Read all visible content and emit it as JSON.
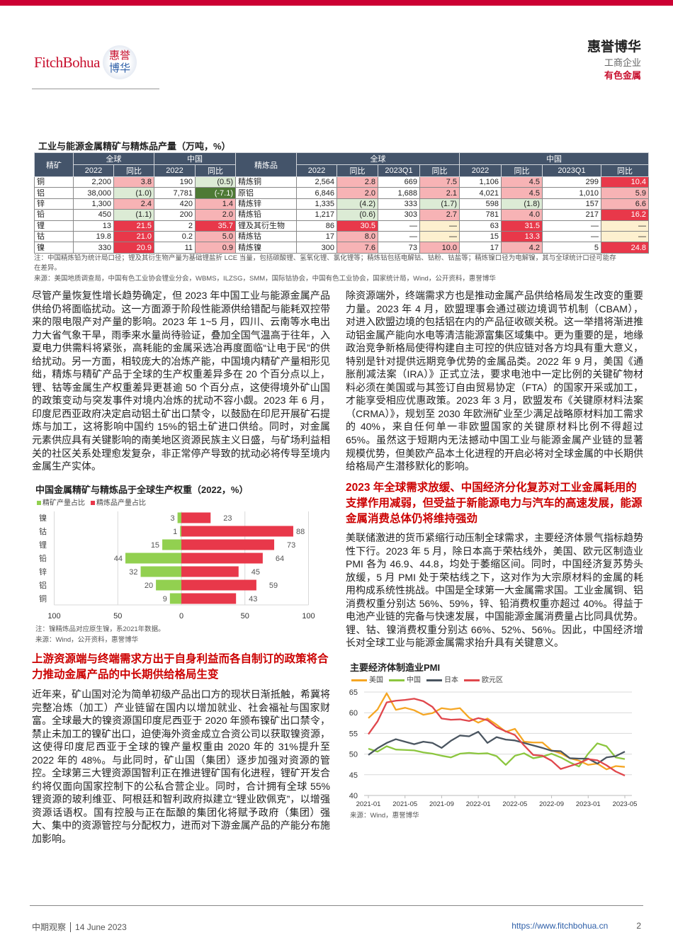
{
  "header": {
    "logo_text": "FitchBohua",
    "seal_chars": [
      "惠",
      "誉",
      "博",
      "华"
    ],
    "brand": "惠誉博华",
    "sector": "工商企业",
    "subsector": "有色金属",
    "accent": "#cc0033"
  },
  "table": {
    "title": "工业与能源金属精矿与精炼品产量（万吨，%）",
    "groups": {
      "ore": "精矿",
      "global": "全球",
      "china": "中国",
      "refined": "精炼品"
    },
    "subheaders": {
      "y2022": "2022",
      "yoy": "同比",
      "q1": "2023Q1"
    },
    "rows": [
      {
        "ore": "铜",
        "cells": [
          [
            "2,200",
            ""
          ],
          [
            "3.8",
            "lr"
          ],
          [
            "190",
            ""
          ],
          [
            "(0.5)",
            "lg"
          ],
          [
            "精炼铜",
            ""
          ],
          [
            "2,564",
            ""
          ],
          [
            "2.8",
            "lr"
          ],
          [
            "669",
            ""
          ],
          [
            "7.5",
            "lr"
          ],
          [
            "1,106",
            ""
          ],
          [
            "4.5",
            "lr"
          ],
          [
            "299",
            ""
          ],
          [
            "10.4",
            "sr"
          ]
        ]
      },
      {
        "ore": "铝",
        "cells": [
          [
            "38,000",
            ""
          ],
          [
            "(1.0)",
            "lg"
          ],
          [
            "7,781",
            ""
          ],
          [
            "(-7.1)",
            "dg"
          ],
          [
            "原铝",
            ""
          ],
          [
            "6,846",
            ""
          ],
          [
            "2.0",
            "lr"
          ],
          [
            "1,688",
            ""
          ],
          [
            "2.1",
            "lr"
          ],
          [
            "4,021",
            ""
          ],
          [
            "4.5",
            "lr"
          ],
          [
            "1,010",
            ""
          ],
          [
            "5.9",
            "lr"
          ]
        ]
      },
      {
        "ore": "锌",
        "cells": [
          [
            "1,300",
            ""
          ],
          [
            "2.4",
            "lr"
          ],
          [
            "420",
            ""
          ],
          [
            "1.4",
            "lr"
          ],
          [
            "精炼锌",
            ""
          ],
          [
            "1,335",
            ""
          ],
          [
            "(4.2)",
            "lg"
          ],
          [
            "333",
            ""
          ],
          [
            "(1.7)",
            "lg"
          ],
          [
            "598",
            ""
          ],
          [
            "(1.8)",
            "lg"
          ],
          [
            "157",
            ""
          ],
          [
            "6.6",
            "lr"
          ]
        ]
      },
      {
        "ore": "铅",
        "cells": [
          [
            "450",
            ""
          ],
          [
            "(1.1)",
            "lg"
          ],
          [
            "200",
            ""
          ],
          [
            "2.0",
            "lr"
          ],
          [
            "精炼铅",
            ""
          ],
          [
            "1,217",
            ""
          ],
          [
            "(0.6)",
            "lg"
          ],
          [
            "303",
            ""
          ],
          [
            "2.7",
            "lr"
          ],
          [
            "781",
            ""
          ],
          [
            "4.0",
            "lr"
          ],
          [
            "217",
            ""
          ],
          [
            "16.2",
            "sr"
          ]
        ]
      },
      {
        "ore": "锂",
        "cells": [
          [
            "13",
            ""
          ],
          [
            "21.5",
            "sr"
          ],
          [
            "2",
            ""
          ],
          [
            "35.7",
            "sr"
          ],
          [
            "锂及其衍生物",
            ""
          ],
          [
            "86",
            ""
          ],
          [
            "30.5",
            "sr"
          ],
          [
            "—",
            ""
          ],
          [
            "—",
            "y"
          ],
          [
            "63",
            ""
          ],
          [
            "31.5",
            "sr"
          ],
          [
            "—",
            ""
          ],
          [
            "—",
            "y"
          ]
        ]
      },
      {
        "ore": "钴",
        "cells": [
          [
            "19.8",
            ""
          ],
          [
            "21.0",
            "sr"
          ],
          [
            "0.2",
            ""
          ],
          [
            "5.0",
            "lr"
          ],
          [
            "精炼钴",
            ""
          ],
          [
            "17",
            ""
          ],
          [
            "8.0",
            "lr"
          ],
          [
            "—",
            ""
          ],
          [
            "—",
            "y"
          ],
          [
            "15",
            ""
          ],
          [
            "13.3",
            "sr"
          ],
          [
            "—",
            ""
          ],
          [
            "—",
            "y"
          ]
        ]
      },
      {
        "ore": "镍",
        "cells": [
          [
            "330",
            ""
          ],
          [
            "20.9",
            "sr"
          ],
          [
            "11",
            ""
          ],
          [
            "0.9",
            "lr"
          ],
          [
            "精炼镍",
            ""
          ],
          [
            "300",
            ""
          ],
          [
            "7.6",
            "lr"
          ],
          [
            "73",
            ""
          ],
          [
            "10.0",
            "lr"
          ],
          [
            "17",
            ""
          ],
          [
            "4.2",
            "lr"
          ],
          [
            "5",
            ""
          ],
          [
            "24.8",
            "sr"
          ]
        ]
      }
    ],
    "tone_colors": {
      "lr": "#f7b3b5",
      "sr": "#e8384a",
      "lg": "#dcebd5",
      "dg": "#4e7a35",
      "y": "#fdf0cf"
    },
    "note": "注：中国精炼铅为统计局口径；锂及其衍生物产量为基础锂盐折 LCE 当量，包括碳酸锂、氢氧化锂、氯化锂等；精炼钴包括电解钴、钴粉、钴盐等；精炼镍口径为电解镍，其与全球统计口径可能存在差异。",
    "source": "来源：美国地质调查局，中国有色工业协会锂业分会，WBMS，ILZSG，SMM，国际钴协会，中国有色工业协会，国家统计局，Wind，公开资料，惠誉博华"
  },
  "left": {
    "p1": "尽管产量恢复性增长趋势确定，但 2023 年中国工业与能源金属产品供给仍将面临扰动。这一方面源于阶段性能源供给错配与能耗双控带来的限电限产对产量的影响。2023 年 1~5 月，四川、云南等水电出力大省气象干旱，雨季来水量尚待验证，叠加全国气温高于往年，入夏电力供需料将紧张，高耗能的金属采选冶再度面临“让电于民”的供给扰动。另一方面，相较庞大的冶炼产能，中国境内精矿产量相形见绌，精炼与精矿产品于全球的生产权重差异多在 20 个百分点以上，锂、钴等金属生产权重差异更甚逾 50 个百分点，这使得境外矿山国的政策变动与突发事件对境内冶炼的扰动不容小觑。2023 年 6 月，印度尼西亚政府决定启动铝土矿出口禁令，以鼓励在印尼开展矿石提炼与加工，这将影响中国约 15%的铝土矿进口供给。同时，对金属元素供应具有关键影响的南美地区资源民族主义日盛，与矿场利益相关的社区关系处理愈发复杂，非正常停产导致的扰动必将传导至境内金属生产实体。",
    "h2": "上游资源端与终端需求方出于自身利益而各自制订的政策将合力推动金属产品的中长期供给格局生变",
    "p2": "近年来，矿山国对沦为简单初级产品出口方的现状日渐抵触，希冀将完整冶炼（加工）产业链留在国内以增加就业、社会福祉与国家财富。全球最大的镍资源国印度尼西亚于 2020 年颁布镍矿出口禁令，禁止未加工的镍矿出口，迫使海外资金成立合资公司以获取镍资源，这使得印度尼西亚于全球的镍产量权重由 2020 年的 31%提升至 2022 年的 48%。与此同时，矿山国（集团）逐步加强对资源的管控。全球第三大锂资源国智利正在推进锂矿国有化进程，锂矿开发合约将仅面向国家控制下的公私合营企业。同时，合计拥有全球 55%锂资源的玻利维亚、阿根廷和智利政府拟建立“锂业欧佩克”，以增强资源话语权。国有控股与正在酝酿的集团化将赋予政府（集团）强大、集中的资源管控与分配权力，进而对下游金属产品的产能分布施加影响。"
  },
  "right": {
    "p1": "除资源端外，终端需求方也是推动金属产品供给格局发生改变的重要力量。2023 年 4 月，欧盟理事会通过碳边境调节机制（CBAM），对进入欧盟边境的包括铝在内的产品征收碳关税。这一举措将渐进推动铝金属产能向水电等清洁能源富集区域集中。更为重要的是，地缘政治竞争新格局使得构建自主可控的供应链对各方均具有重大意义，特别是针对提供远期竞争优势的金属品类。2022 年 9 月，美国《通胀削减法案（IRA）》正式立法，要求电池中一定比例的关键矿物材料必须在美国或与其签订自由贸易协定（FTA）的国家开采或加工，才能享受相应优惠政策。2023 年 3 月，欧盟发布《关键原材料法案（CRMA）》，规划至 2030 年欧洲矿业至少满足战略原材料加工需求的 40%，来自任何单一非欧盟国家的关键原材料比例不得超过 65%。虽然这于短期内无法撼动中国工业与能源金属产业链的显著规模优势，但美欧产品本土化进程的开启必将对全球金属的中长期供给格局产生潜移默化的影响。",
    "h2": "2023 年全球需求放缓、中国经济分化复苏对工业金属耗用的支撑作用减弱，但受益于新能源电力与汽车的高速发展，能源金属消费总体仍将维持强劲",
    "p2": "美联储激进的货币紧缩行动压制全球需求，主要经济体景气指标趋势性下行。2023 年 5 月，除日本高于荣枯线外，美国、欧元区制造业 PMI 各为 46.9、44.8，均处于萎缩区间。同时，中国经济复苏势头放缓，5 月 PMI 处于荣枯线之下，这对作为大宗原材料的金属的耗用构成系统性挑战。中国是全球第一大金属需求国。工业金属铜、铝消费权重分别达 56%、59%，锌、铅消费权重亦超过 40%。得益于电池产业链的完备与快速发展，中国能源金属消费量占比同具优势。锂、钴、镍消费权重分别达 66%、52%、56%。因此，中国经济增长对全球工业与能源金属需求抬升具有关键意义。"
  },
  "chart_data": [
    {
      "type": "bar",
      "title": "中国金属精矿与精炼品于全球生产权重（2022，%）",
      "categories": [
        "镍",
        "钴",
        "锂",
        "铅",
        "锌",
        "铝",
        "铜"
      ],
      "series": [
        {
          "name": "精矿产量占比",
          "color": "#92d050",
          "values": [
            3,
            1,
            15,
            44,
            32,
            20,
            9
          ]
        },
        {
          "name": "精炼品产量占比",
          "color": "#e8384a",
          "values": [
            23,
            88,
            73,
            64,
            45,
            59,
            43
          ]
        }
      ],
      "xlim": [
        -100,
        100
      ],
      "xticks": [
        "100",
        "50",
        "0",
        "50",
        "100"
      ],
      "grid": true,
      "legend": "top-left",
      "note": "注：镍精炼品对应原生镍，系2021年数据。",
      "source": "来源：Wind，公开资料，惠誉博华"
    },
    {
      "type": "line",
      "title": "主要经济体制造业PMI",
      "x": [
        "2021-01",
        "2021-02",
        "2021-03",
        "2021-04",
        "2021-05",
        "2021-06",
        "2021-07",
        "2021-08",
        "2021-09",
        "2021-10",
        "2021-11",
        "2021-12",
        "2022-01",
        "2022-02",
        "2022-03",
        "2022-04",
        "2022-05",
        "2022-06",
        "2022-07",
        "2022-08",
        "2022-09",
        "2022-10",
        "2022-11",
        "2022-12",
        "2023-01",
        "2023-02",
        "2023-03",
        "2023-04",
        "2023-05"
      ],
      "xticks": [
        "2021-01",
        "2021-05",
        "2021-09",
        "2022-01",
        "2022-05",
        "2022-09",
        "2023-01",
        "2023-05"
      ],
      "ylim": [
        40,
        65
      ],
      "yticks": [
        "40",
        "45",
        "50",
        "55",
        "60",
        "65"
      ],
      "grid": true,
      "legend": "top",
      "series": [
        {
          "name": "美国",
          "color": "#f5a623",
          "values": [
            58.7,
            60.8,
            64.7,
            60.7,
            61.2,
            60.6,
            59.5,
            59.9,
            61.1,
            60.8,
            61.1,
            58.8,
            57.6,
            58.6,
            57.1,
            55.4,
            56.1,
            53.0,
            52.8,
            52.8,
            50.9,
            50.2,
            49.0,
            48.4,
            47.4,
            47.7,
            46.3,
            47.1,
            46.9
          ]
        },
        {
          "name": "中国",
          "color": "#8cc63f",
          "values": [
            51.3,
            50.6,
            51.9,
            51.1,
            51.0,
            50.9,
            50.4,
            50.1,
            49.6,
            49.2,
            50.1,
            50.3,
            50.1,
            50.2,
            49.5,
            47.4,
            49.6,
            50.2,
            49.0,
            49.4,
            50.1,
            49.2,
            48.0,
            47.0,
            50.1,
            52.6,
            51.9,
            49.2,
            48.8
          ]
        },
        {
          "name": "日本",
          "color": "#4a5560",
          "values": [
            49.8,
            51.4,
            52.7,
            53.6,
            53.0,
            52.4,
            53.0,
            52.7,
            51.5,
            53.2,
            54.5,
            54.3,
            55.4,
            52.7,
            54.1,
            53.5,
            53.3,
            52.7,
            52.1,
            51.5,
            50.8,
            50.7,
            49.0,
            48.9,
            48.9,
            47.7,
            49.2,
            49.5,
            50.6
          ]
        },
        {
          "name": "欧元区",
          "color": "#e0474c",
          "values": [
            54.8,
            57.9,
            62.5,
            62.9,
            63.1,
            63.4,
            62.8,
            61.4,
            58.6,
            58.3,
            58.4,
            58.0,
            58.7,
            58.2,
            56.5,
            55.5,
            54.6,
            52.1,
            49.8,
            49.6,
            48.4,
            46.4,
            47.1,
            47.8,
            48.8,
            48.5,
            47.3,
            45.8,
            44.8
          ]
        }
      ],
      "source": "来源：Wind，惠誉博华"
    }
  ],
  "footer": {
    "series": "中期观察",
    "date": "14 June 2023",
    "url": "https://www.fitchbohua.cn",
    "page": "2"
  }
}
